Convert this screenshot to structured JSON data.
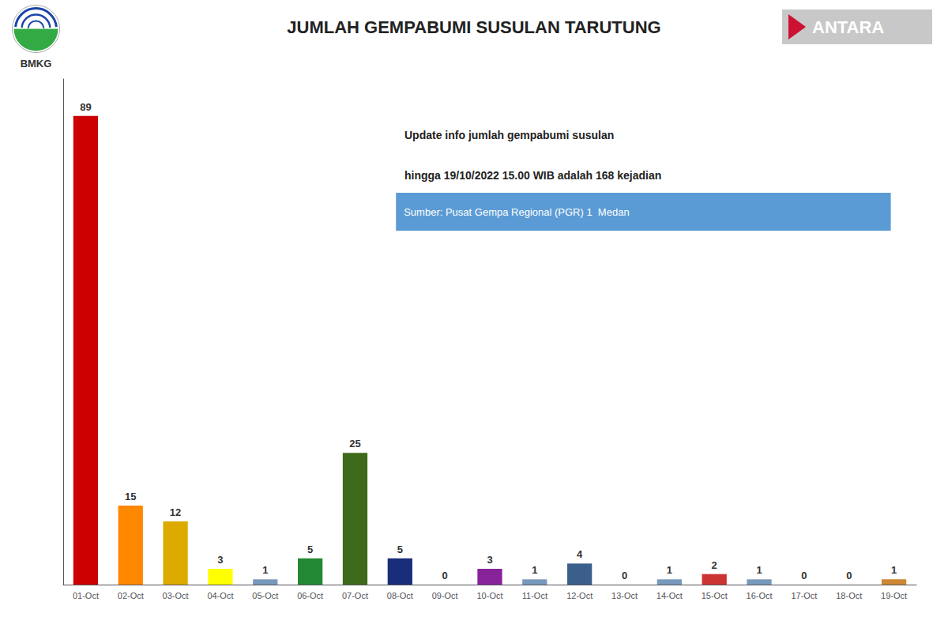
{
  "chart_data": {
    "type": "bar",
    "title": "JUMLAH GEMPABUMI SUSULAN TARUTUNG",
    "categories": [
      "01-Oct",
      "02-Oct",
      "03-Oct",
      "04-Oct",
      "05-Oct",
      "06-Oct",
      "07-Oct",
      "08-Oct",
      "09-Oct",
      "10-Oct",
      "11-Oct",
      "12-Oct",
      "13-Oct",
      "14-Oct",
      "15-Oct",
      "16-Oct",
      "17-Oct",
      "18-Oct",
      "19-Oct"
    ],
    "values": [
      89,
      15,
      12,
      3,
      1,
      5,
      25,
      5,
      0,
      3,
      1,
      4,
      0,
      1,
      2,
      1,
      0,
      0,
      1
    ],
    "colors": [
      "#cc0000",
      "#ff8800",
      "#ddaa00",
      "#ffff00",
      "#7799bb",
      "#228833",
      "#3d6b1a",
      "#1a2d7a",
      "#aaaaaa",
      "#882299",
      "#7799bb",
      "#3a5f8a",
      "#aaaaaa",
      "#7799bb",
      "#cc3333",
      "#7799bb",
      "#aaaaaa",
      "#aaaaaa",
      "#cc8833"
    ],
    "ylim": [
      0,
      96
    ],
    "tick_labels": "x",
    "grid": false,
    "data_labels": true,
    "annotations": [
      "Update info jumlah gempabumi susulan",
      "hingga 19/10/2022 15.00 WIB adalah 168 kejadian",
      "Sumber: Pusat Gempa Regional (PGR) 1  Medan",
      "BMKG",
      "ANTARA"
    ]
  }
}
